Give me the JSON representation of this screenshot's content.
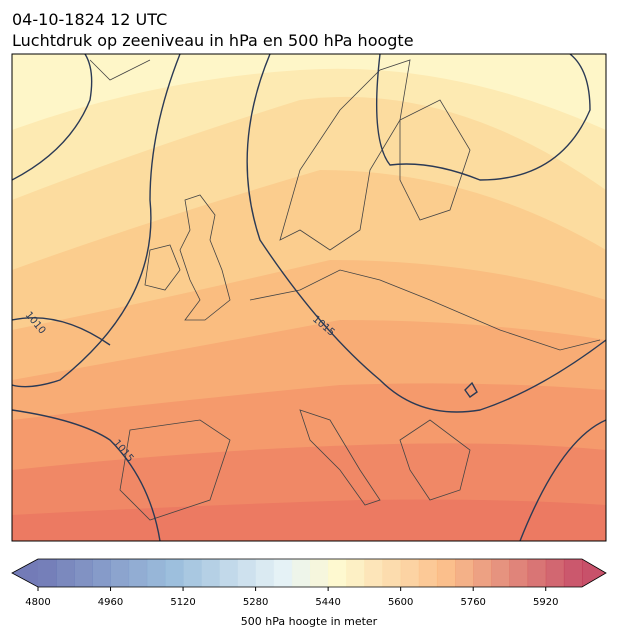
{
  "header": {
    "title": "04-10-1824 12 UTC",
    "subtitle": "Luchtdruk op zeeniveau in hPa en 500 hPa hoogte"
  },
  "map": {
    "contour_labels": [
      "1010",
      "1015",
      "1015"
    ]
  },
  "colorbar": {
    "range": [
      4800,
      6000
    ],
    "ticks": [
      4800,
      4960,
      5120,
      5280,
      5440,
      5600,
      5760,
      5920
    ],
    "label": "500 hPa hoogte in meter"
  }
}
